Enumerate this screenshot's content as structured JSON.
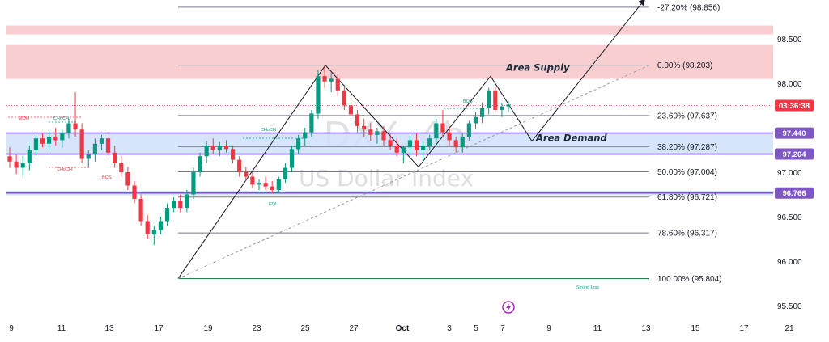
{
  "chart_data": {
    "type": "candlestick",
    "watermark": {
      "symbol": "DXY, 4h",
      "name": "US Dollar Index"
    },
    "y_axis": {
      "range": [
        95.3,
        98.95
      ],
      "ticks": [
        "98.500",
        "98.000",
        "97.000",
        "96.500",
        "96.000",
        "95.500"
      ]
    },
    "x_axis": {
      "labels": [
        "9",
        "11",
        "13",
        "17",
        "19",
        "23",
        "25",
        "27",
        "Oct",
        "3",
        "5",
        "7",
        "9",
        "11",
        "13",
        "15",
        "17",
        "21"
      ],
      "bold_label": "Oct"
    },
    "price_tags": [
      {
        "text": "03:36:38",
        "value": 97.75,
        "color": "#f23645"
      },
      {
        "text": "97.440",
        "value": 97.44,
        "color": "#7e57c2"
      },
      {
        "text": "97.204",
        "value": 97.204,
        "color": "#7e57c2"
      },
      {
        "text": "96.766",
        "value": 96.766,
        "color": "#7e57c2"
      }
    ],
    "fibonacci": [
      {
        "label": "-27.20% (98.856)",
        "value": 98.856
      },
      {
        "label": "0.00% (98.203)",
        "value": 98.203
      },
      {
        "label": "23.60% (97.637)",
        "value": 97.637
      },
      {
        "label": "38.20% (97.287)",
        "value": 97.287
      },
      {
        "label": "50.00% (97.004)",
        "value": 97.004
      },
      {
        "label": "61.80% (96.721)",
        "value": 96.721
      },
      {
        "label": "78.60% (96.317)",
        "value": 96.317
      },
      {
        "label": "100.00% (95.804)",
        "value": 95.804
      }
    ],
    "zones": [
      {
        "name": "",
        "type": "supply",
        "from": 98.55,
        "to": 98.65,
        "color": "#f7c5c8"
      },
      {
        "name": "Area Supply",
        "type": "supply",
        "from": 98.05,
        "to": 98.43,
        "color": "#f7c5c8"
      },
      {
        "name": "Area Demand",
        "type": "demand",
        "from": 97.204,
        "to": 97.44,
        "color": "#cfe0fb"
      },
      {
        "name": "",
        "type": "demand",
        "from": 96.74,
        "to": 96.79,
        "color": "#cfe0fb"
      }
    ],
    "annotations": [
      "EQH",
      "CHoCH",
      "CHoCH",
      "BOS",
      "CHoCH",
      "EQL",
      "BOS",
      "Strong Low"
    ],
    "candles": [
      [
        97.18,
        97.28,
        97.05,
        97.12
      ],
      [
        97.12,
        97.2,
        96.98,
        97.05
      ],
      [
        97.05,
        97.18,
        96.95,
        97.1
      ],
      [
        97.1,
        97.3,
        97.02,
        97.25
      ],
      [
        97.25,
        97.42,
        97.18,
        97.38
      ],
      [
        97.38,
        97.44,
        97.28,
        97.32
      ],
      [
        97.32,
        97.46,
        97.25,
        97.4
      ],
      [
        97.4,
        97.5,
        97.3,
        97.36
      ],
      [
        97.36,
        97.48,
        97.28,
        97.44
      ],
      [
        97.44,
        97.6,
        97.38,
        97.55
      ],
      [
        97.55,
        97.9,
        97.4,
        97.48
      ],
      [
        97.48,
        97.55,
        97.1,
        97.15
      ],
      [
        97.15,
        97.25,
        97.05,
        97.2
      ],
      [
        97.2,
        97.38,
        97.12,
        97.32
      ],
      [
        97.32,
        97.42,
        97.25,
        97.38
      ],
      [
        97.38,
        97.45,
        97.18,
        97.22
      ],
      [
        97.22,
        97.3,
        97.05,
        97.1
      ],
      [
        97.1,
        97.18,
        96.95,
        97.0
      ],
      [
        97.0,
        97.06,
        96.8,
        96.85
      ],
      [
        96.85,
        96.9,
        96.65,
        96.7
      ],
      [
        96.7,
        96.75,
        96.4,
        96.45
      ],
      [
        96.45,
        96.52,
        96.25,
        96.3
      ],
      [
        96.3,
        96.4,
        96.18,
        96.35
      ],
      [
        96.35,
        96.5,
        96.3,
        96.45
      ],
      [
        96.45,
        96.65,
        96.4,
        96.6
      ],
      [
        96.6,
        96.72,
        96.55,
        96.68
      ],
      [
        96.68,
        96.75,
        96.55,
        96.6
      ],
      [
        96.6,
        96.8,
        96.55,
        96.75
      ],
      [
        96.75,
        97.05,
        96.7,
        97.0
      ],
      [
        97.0,
        97.22,
        96.95,
        97.18
      ],
      [
        97.18,
        97.35,
        97.1,
        97.3
      ],
      [
        97.3,
        97.38,
        97.2,
        97.25
      ],
      [
        97.25,
        97.34,
        97.18,
        97.3
      ],
      [
        97.3,
        97.36,
        97.22,
        97.26
      ],
      [
        97.26,
        97.3,
        97.1,
        97.14
      ],
      [
        97.14,
        97.18,
        96.95,
        97.0
      ],
      [
        97.0,
        97.06,
        96.9,
        96.95
      ],
      [
        96.95,
        97.0,
        96.82,
        96.86
      ],
      [
        96.86,
        96.92,
        96.8,
        96.88
      ],
      [
        96.88,
        96.95,
        96.8,
        96.84
      ],
      [
        96.84,
        96.9,
        96.76,
        96.8
      ],
      [
        96.8,
        96.95,
        96.77,
        96.92
      ],
      [
        96.92,
        97.1,
        96.88,
        97.05
      ],
      [
        97.05,
        97.3,
        97.0,
        97.26
      ],
      [
        97.26,
        97.42,
        97.2,
        97.38
      ],
      [
        97.38,
        97.5,
        97.3,
        97.45
      ],
      [
        97.45,
        97.7,
        97.4,
        97.66
      ],
      [
        97.66,
        98.15,
        97.6,
        98.08
      ],
      [
        98.08,
        98.2,
        97.95,
        98.02
      ],
      [
        98.02,
        98.12,
        97.9,
        98.05
      ],
      [
        98.05,
        98.1,
        97.85,
        97.92
      ],
      [
        97.92,
        97.98,
        97.7,
        97.75
      ],
      [
        97.75,
        97.82,
        97.6,
        97.65
      ],
      [
        97.65,
        97.7,
        97.45,
        97.52
      ],
      [
        97.52,
        97.6,
        97.4,
        97.48
      ],
      [
        97.48,
        97.55,
        97.35,
        97.42
      ],
      [
        97.42,
        97.5,
        97.32,
        97.46
      ],
      [
        97.46,
        97.52,
        97.3,
        97.36
      ],
      [
        97.36,
        97.44,
        97.25,
        97.3
      ],
      [
        97.3,
        97.38,
        97.18,
        97.22
      ],
      [
        97.22,
        97.3,
        97.1,
        97.28
      ],
      [
        97.28,
        97.42,
        97.2,
        97.36
      ],
      [
        97.36,
        97.44,
        97.18,
        97.25
      ],
      [
        97.25,
        97.34,
        97.15,
        97.3
      ],
      [
        97.3,
        97.42,
        97.25,
        97.38
      ],
      [
        97.38,
        97.6,
        97.3,
        97.55
      ],
      [
        97.55,
        97.7,
        97.4,
        97.45
      ],
      [
        97.45,
        97.52,
        97.3,
        97.36
      ],
      [
        97.36,
        97.4,
        97.22,
        97.28
      ],
      [
        97.28,
        97.45,
        97.22,
        97.4
      ],
      [
        97.4,
        97.58,
        97.35,
        97.55
      ],
      [
        97.55,
        97.68,
        97.48,
        97.62
      ],
      [
        97.62,
        97.78,
        97.55,
        97.72
      ],
      [
        97.72,
        97.95,
        97.65,
        97.92
      ],
      [
        97.92,
        97.96,
        97.68,
        97.7
      ],
      [
        97.7,
        97.78,
        97.62,
        97.74
      ],
      [
        97.74,
        97.8,
        97.68,
        97.76
      ]
    ],
    "grid": false
  }
}
